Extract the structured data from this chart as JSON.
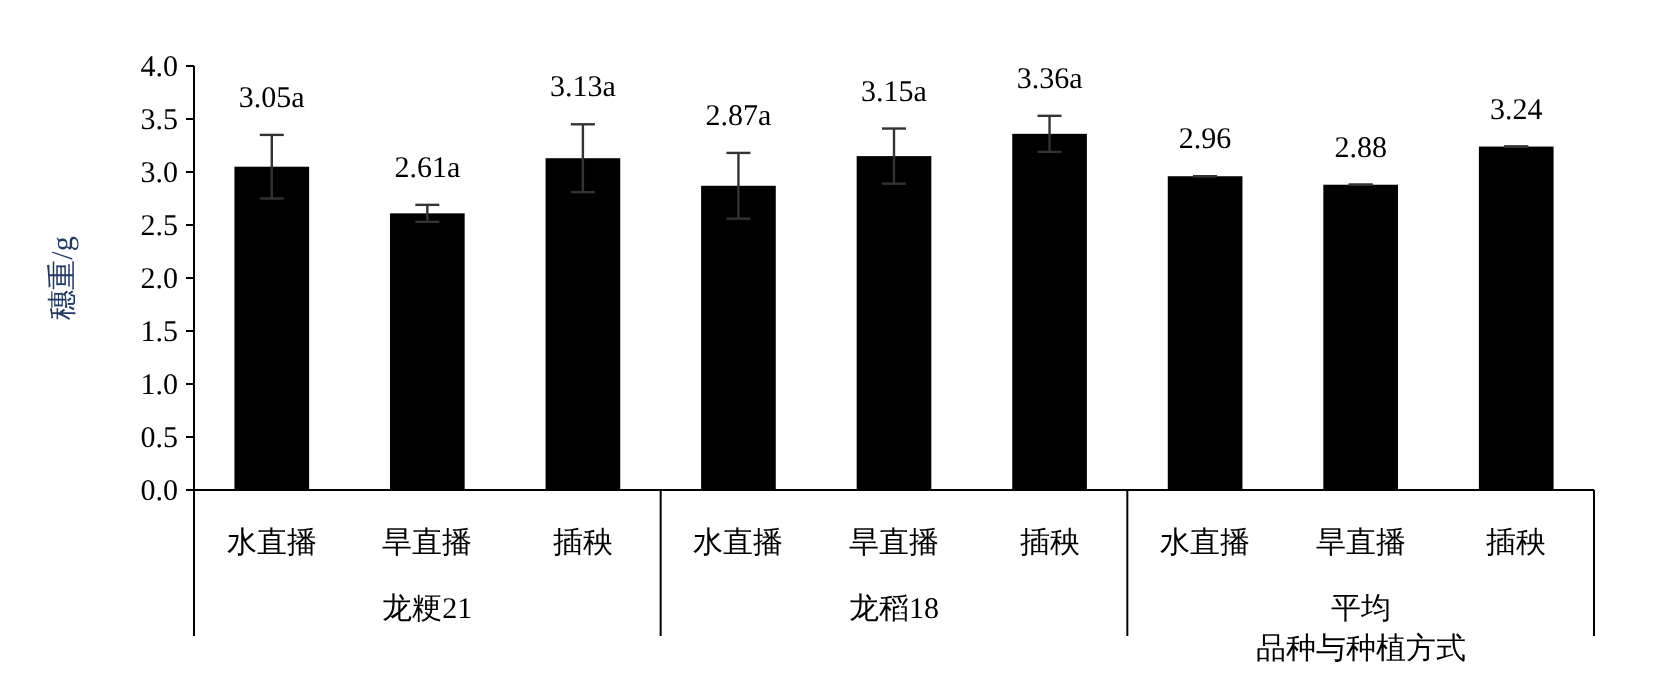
{
  "chart_data": {
    "type": "bar",
    "categories": [
      "水直播",
      "旱直播",
      "插秧",
      "水直播",
      "旱直播",
      "插秧",
      "水直播",
      "旱直播",
      "插秧"
    ],
    "values": [
      3.05,
      2.61,
      3.13,
      2.87,
      3.15,
      3.36,
      2.96,
      2.88,
      3.24
    ],
    "color": "#000000",
    "errors": [
      0.3,
      0.08,
      0.32,
      0.31,
      0.26,
      0.17,
      0,
      0,
      0
    ],
    "value_labels": [
      "3.05a",
      "2.61a",
      "3.13a",
      "2.87a",
      "3.15a",
      "3.36a",
      "2.96",
      "2.88",
      "3.24"
    ],
    "annotations": [
      "龙粳21",
      "龙稻18",
      "平均"
    ],
    "xlabel": "品种与种植方式",
    "ylabel": "穗重/g",
    "ylim": [
      0,
      4
    ],
    "yticks": [
      {
        "value": 0,
        "label": "0.0"
      },
      {
        "value": 0.5,
        "label": "0.5"
      },
      {
        "value": 1,
        "label": "1.0"
      },
      {
        "value": 1.5,
        "label": "1.5"
      },
      {
        "value": 2,
        "label": "2.0"
      },
      {
        "value": 2.5,
        "label": "2.5"
      },
      {
        "value": 3,
        "label": "3.0"
      },
      {
        "value": 3.5,
        "label": "3.5"
      },
      {
        "value": 4,
        "label": "4.0"
      }
    ],
    "grid": false
  }
}
